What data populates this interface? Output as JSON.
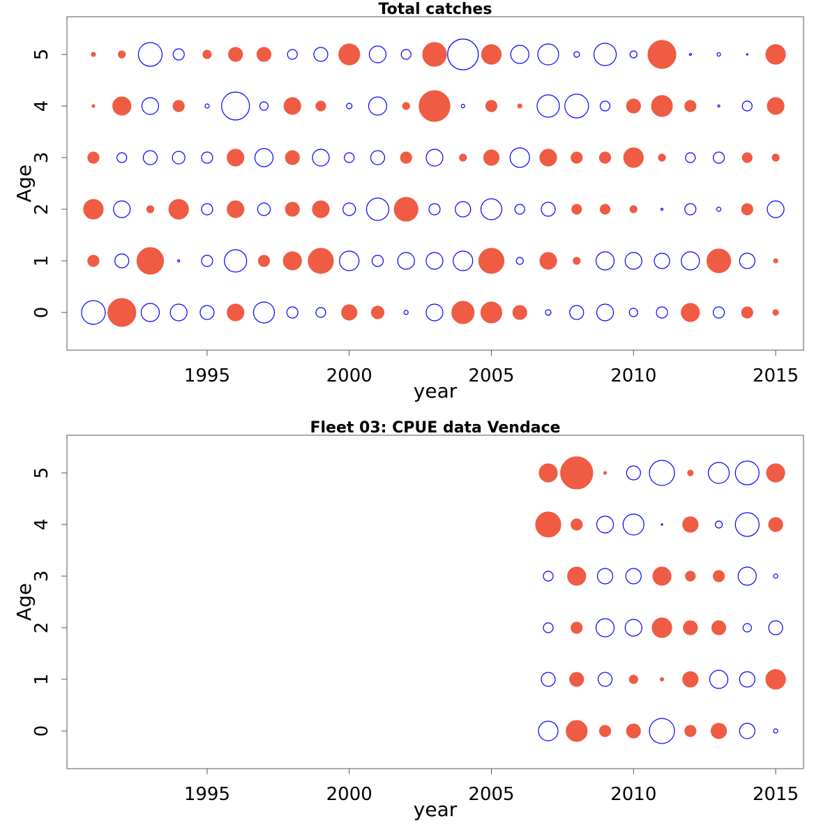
{
  "chart_data": [
    {
      "type": "bubble",
      "title": "Total catches",
      "xlabel": "year",
      "ylabel": "Age",
      "x": [
        1991,
        1992,
        1993,
        1994,
        1995,
        1996,
        1997,
        1998,
        1999,
        2000,
        2001,
        2002,
        2003,
        2004,
        2005,
        2006,
        2007,
        2008,
        2009,
        2010,
        2011,
        2012,
        2013,
        2014,
        2015
      ],
      "ages": [
        0,
        1,
        2,
        3,
        4,
        5
      ],
      "values": [
        [
          -1.7,
          2.0,
          -1.3,
          -1.2,
          -1.0,
          1.2,
          -1.5,
          -0.8,
          -0.7,
          1.1,
          0.9,
          -0.3,
          -1.2,
          1.6,
          1.5,
          1.0,
          -0.4,
          -1.0,
          -1.2,
          -0.6,
          -0.8,
          1.3,
          -0.8,
          0.8,
          0.4
        ],
        [
          0.8,
          -1.0,
          1.9,
          -0.15,
          -0.8,
          -1.6,
          0.8,
          1.3,
          1.8,
          -1.4,
          -0.8,
          -1.2,
          -1.2,
          -1.4,
          1.8,
          -0.5,
          1.2,
          0.5,
          -1.3,
          -1.2,
          -1.1,
          -1.3,
          1.7,
          -1.1,
          0.3
        ],
        [
          1.4,
          -1.2,
          0.5,
          1.4,
          -0.8,
          1.2,
          -0.9,
          1.0,
          1.2,
          -0.9,
          -1.6,
          1.7,
          -0.8,
          -1.1,
          -1.5,
          -0.7,
          -1.0,
          0.7,
          0.7,
          0.5,
          -0.15,
          -0.8,
          -0.3,
          0.8,
          -1.2
        ],
        [
          0.8,
          -0.7,
          -1.0,
          -0.9,
          -0.8,
          1.2,
          -1.3,
          1.0,
          -1.2,
          -0.7,
          -1.0,
          0.8,
          -1.2,
          0.5,
          1.1,
          -1.4,
          1.2,
          0.8,
          0.8,
          1.4,
          0.5,
          -0.7,
          -0.8,
          0.7,
          0.5
        ],
        [
          0.2,
          1.3,
          -1.2,
          0.8,
          -0.3,
          -2.0,
          -0.6,
          1.2,
          0.7,
          -0.4,
          -1.3,
          0.5,
          2.2,
          -0.25,
          0.8,
          0.3,
          -1.6,
          -1.7,
          -0.7,
          1.0,
          1.5,
          0.8,
          -0.15,
          -0.7,
          1.2
        ],
        [
          0.3,
          0.5,
          -1.7,
          -0.8,
          0.6,
          1.0,
          1.0,
          -0.7,
          -1.0,
          1.5,
          -1.2,
          -0.7,
          1.7,
          -2.2,
          1.4,
          -1.3,
          -1.5,
          -0.4,
          -1.6,
          -0.5,
          2.0,
          -0.15,
          -0.25,
          -0.1,
          1.4
        ]
      ],
      "pos_color": "#ef5b43",
      "neg_color": "#0000ff",
      "xlim": [
        1990.07,
        2015.98
      ],
      "ylim": [
        -0.73,
        5.73
      ],
      "xticks": [
        1995,
        2000,
        2005,
        2010,
        2015
      ],
      "yticks": [
        0,
        1,
        2,
        3,
        4,
        5
      ]
    },
    {
      "type": "bubble",
      "title": "Fleet 03:  CPUE data Vendace",
      "xlabel": "year",
      "ylabel": "Age",
      "x": [
        2007,
        2008,
        2009,
        2010,
        2011,
        2012,
        2013,
        2014,
        2015
      ],
      "ages": [
        0,
        1,
        2,
        3,
        4,
        5
      ],
      "values": [
        [
          -1.4,
          1.5,
          0.8,
          1.0,
          -1.8,
          0.8,
          1.1,
          -1.1,
          -0.3
        ],
        [
          -1.0,
          1.0,
          -1.0,
          0.6,
          0.25,
          1.1,
          -1.3,
          -1.1,
          1.4
        ],
        [
          -0.7,
          0.8,
          -1.3,
          -1.2,
          1.4,
          1.0,
          1.0,
          -0.6,
          -1.0
        ],
        [
          -0.7,
          1.3,
          -1.1,
          -1.1,
          1.3,
          0.7,
          0.8,
          -1.3,
          -0.3
        ],
        [
          1.8,
          0.8,
          -1.2,
          -1.5,
          -0.1,
          1.1,
          -0.5,
          -1.7,
          1.0
        ],
        [
          1.3,
          2.3,
          0.2,
          -1.0,
          -1.8,
          0.4,
          -1.5,
          -1.7,
          1.3
        ]
      ],
      "pos_color": "#ef5b43",
      "neg_color": "#0000ff",
      "xlim": [
        1990.07,
        2015.98
      ],
      "ylim": [
        -0.73,
        5.73
      ],
      "xticks": [
        1995,
        2000,
        2005,
        2010,
        2015
      ],
      "yticks": [
        0,
        1,
        2,
        3,
        4,
        5
      ]
    }
  ]
}
